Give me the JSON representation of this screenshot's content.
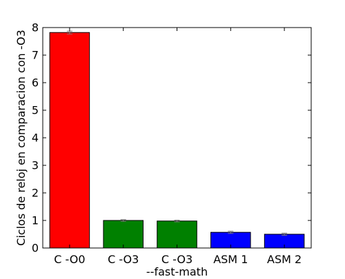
{
  "chart_data": {
    "type": "bar",
    "categories": [
      "C -O0",
      "C -O3",
      "C -O3",
      "ASM 1",
      "ASM 2"
    ],
    "category_sublabels": [
      "",
      "",
      "--fast-math",
      "",
      ""
    ],
    "values": [
      7.82,
      1.0,
      0.98,
      0.57,
      0.5
    ],
    "errors": [
      0.05,
      0.03,
      0.03,
      0.04,
      0.04
    ],
    "bar_colors": [
      "#ff0000",
      "#008000",
      "#008000",
      "#0000ff",
      "#0000ff"
    ],
    "xlabel": "",
    "ylabel": "Ciclos de reloj en comparacion con -O3",
    "ylim": [
      0,
      8
    ],
    "yticks": [
      0,
      1,
      2,
      3,
      4,
      5,
      6,
      7,
      8
    ],
    "grid": false
  }
}
